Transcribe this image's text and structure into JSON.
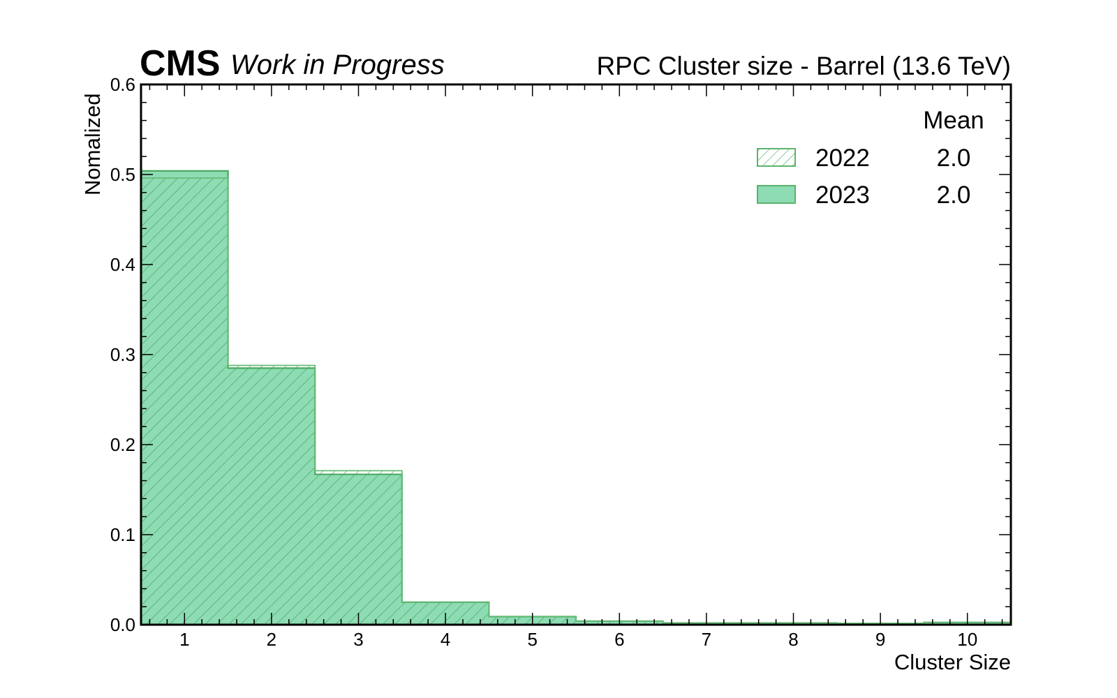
{
  "header": {
    "experiment": "CMS",
    "status": "Work in Progress",
    "title": "RPC Cluster size - Barrel (13.6 TeV)"
  },
  "legend": {
    "header": "Mean",
    "entries": [
      {
        "label": "2022",
        "mean": "2.0"
      },
      {
        "label": "2023",
        "mean": "2.0"
      }
    ]
  },
  "chart_data": {
    "type": "bar",
    "title": "RPC Cluster size - Barrel (13.6 TeV)",
    "xlabel": "Cluster Size",
    "ylabel": "Nomalized",
    "xlim": [
      0.5,
      10.5
    ],
    "ylim": [
      0,
      0.6
    ],
    "categories": [
      1,
      2,
      3,
      4,
      5,
      6,
      7,
      8,
      9,
      10
    ],
    "x_ticks": [
      "1",
      "2",
      "3",
      "4",
      "5",
      "6",
      "7",
      "8",
      "9",
      "10"
    ],
    "y_ticks": [
      "0.0",
      "0.1",
      "0.2",
      "0.3",
      "0.4",
      "0.5",
      "0.6"
    ],
    "series": [
      {
        "name": "2022",
        "style": "hatched",
        "color": "#66bb77",
        "values": [
          0.496,
          0.288,
          0.171,
          0.025,
          0.009,
          0.004,
          0.002,
          0.002,
          0.0015,
          0.0025
        ]
      },
      {
        "name": "2023",
        "style": "filled",
        "color": "#8ddcb3",
        "values": [
          0.504,
          0.285,
          0.167,
          0.025,
          0.009,
          0.004,
          0.002,
          0.002,
          0.0015,
          0.0025
        ]
      }
    ],
    "grid": false,
    "legend_position": "top-right"
  }
}
